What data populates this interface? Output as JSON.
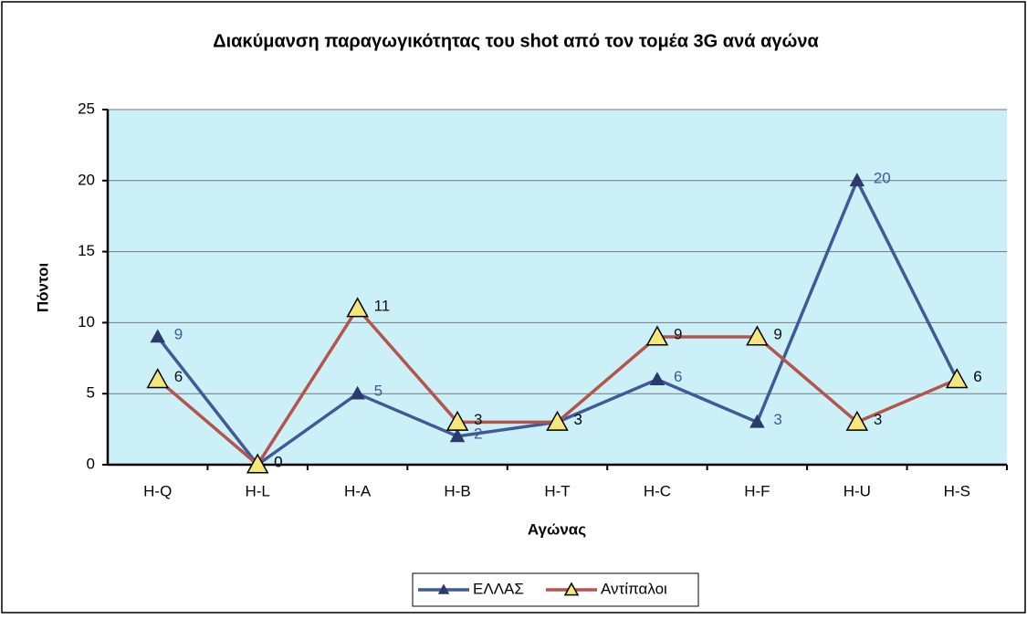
{
  "chart_data": {
    "type": "line",
    "title": "Διακύμανση παραγωγικότητας του shot από τον τομέα 3G ανά αγώνα",
    "x_label": "Αγώνας",
    "y_label": "Πόντοι",
    "categories": [
      "H-Q",
      "H-L",
      "H-A",
      "H-B",
      "H-T",
      "H-C",
      "H-F",
      "H-U",
      "H-S"
    ],
    "series": [
      {
        "name": "ΕΛΛΑΣ",
        "color": "#3f5a96",
        "marker_color": "#2b3a6a",
        "label_color": "#3f5a96",
        "values": [
          9,
          0,
          5,
          2,
          3,
          6,
          3,
          20,
          6
        ]
      },
      {
        "name": "Αντίπαλοι",
        "color": "#b5544a",
        "marker_color": "#f5e77a",
        "label_color": "#111111",
        "values": [
          6,
          0,
          11,
          3,
          3,
          9,
          9,
          3,
          6
        ]
      }
    ],
    "ylim": [
      0,
      25
    ],
    "yticks": [
      0,
      5,
      10,
      15,
      20,
      25
    ],
    "grid": true,
    "legend": "bottom"
  }
}
